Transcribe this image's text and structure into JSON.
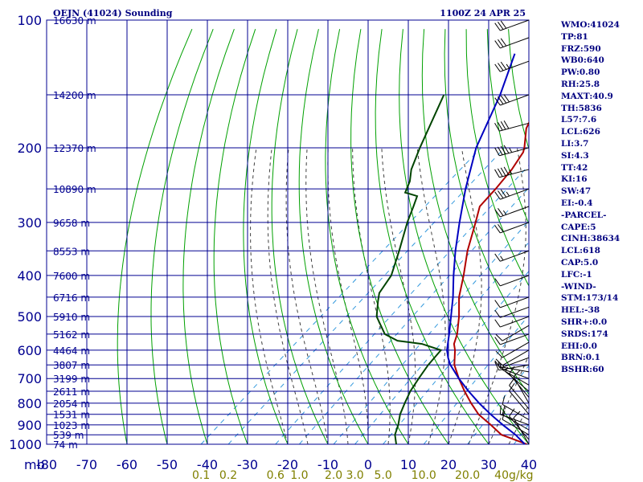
{
  "header": {
    "station": "OEJN (41024) Sounding",
    "valid_time": "1100Z 24 APR 25"
  },
  "colors": {
    "grid": "#000090",
    "dry_adiabat": "#00a000",
    "moist_adiabat": "#404040",
    "mixing_ratio": "#3399dd",
    "temperature": "#b00000",
    "dewpoint": "#004400",
    "parcel": "#0000c0",
    "wind_barb": "#000000",
    "text": "#000080",
    "mix_label": "#808000"
  },
  "indices": [
    "WMO:41024",
    "TP:81",
    "FRZ:590",
    "WB0:640",
    "PW:0.80",
    "RH:25.8",
    "MAXT:40.9",
    "TH:5836",
    "L57:7.6",
    "LCL:626",
    "LI:3.7",
    "SI:4.3",
    "TT:42",
    "KI:16",
    "SW:47",
    "EI:-0.4",
    "-PARCEL-",
    "CAPE:5",
    "CINH:38634",
    "LCL:618",
    "CAP:5.0",
    "LFC:-1",
    "-WIND-",
    "STM:173/14",
    "HEL:-38",
    "SHR+:0.0",
    "SRDS:174",
    "EHI:0.0",
    "BRN:0.1",
    "BSHR:60"
  ],
  "chart_data": {
    "type": "skew-t log-p",
    "title": "OEJN (41024) Sounding",
    "xlabel": "",
    "ylabel": "mb",
    "p_range": [
      1000,
      100
    ],
    "t_range": [
      -80,
      40
    ],
    "pressure_ticks": [
      {
        "p": 100,
        "label": "100"
      },
      {
        "p": 200,
        "label": "200"
      },
      {
        "p": 300,
        "label": "300"
      },
      {
        "p": 400,
        "label": "400"
      },
      {
        "p": 500,
        "label": "500"
      },
      {
        "p": 600,
        "label": "600"
      },
      {
        "p": 700,
        "label": "700"
      },
      {
        "p": 800,
        "label": "800"
      },
      {
        "p": 900,
        "label": "900"
      },
      {
        "p": 1000,
        "label": "1000"
      }
    ],
    "x_axis_unit": "mb",
    "temperature_ticks": [
      "-80",
      "-70",
      "-60",
      "-50",
      "-40",
      "-30",
      "-20",
      "-10",
      "0",
      "10",
      "20",
      "30",
      "40"
    ],
    "mixing_ratio_labels": [
      "0.1",
      "0.2",
      "0.6",
      "1.0",
      "2.0",
      "3.0",
      "5.0",
      "10.0",
      "20.0",
      "40g/kg"
    ],
    "mixing_ratio_values": [
      0.1,
      0.2,
      0.6,
      1.0,
      2.0,
      3.0,
      5.0,
      10.0,
      20.0,
      40.0
    ],
    "height_labels": [
      {
        "p": 100,
        "label": "16630 m"
      },
      {
        "p": 150,
        "label": "14200 m"
      },
      {
        "p": 200,
        "label": "12370 m"
      },
      {
        "p": 250,
        "label": "10890 m"
      },
      {
        "p": 300,
        "label": "9658 m"
      },
      {
        "p": 350,
        "label": "8553 m"
      },
      {
        "p": 400,
        "label": "7600 m"
      },
      {
        "p": 450,
        "label": "6716 m"
      },
      {
        "p": 500,
        "label": "5910 m"
      },
      {
        "p": 550,
        "label": "5162 m"
      },
      {
        "p": 600,
        "label": "4464 m"
      },
      {
        "p": 650,
        "label": "3807 m"
      },
      {
        "p": 700,
        "label": "3199 m"
      },
      {
        "p": 750,
        "label": "2611 m"
      },
      {
        "p": 800,
        "label": "2054 m"
      },
      {
        "p": 850,
        "label": "1531 m"
      },
      {
        "p": 900,
        "label": "1023 m"
      },
      {
        "p": 950,
        "label": "539 m"
      },
      {
        "p": 1000,
        "label": "74 m"
      }
    ],
    "series": [
      {
        "name": "Temperature",
        "values": [
          {
            "p": 1000,
            "t": 39.5
          },
          {
            "p": 950,
            "t": 30.5
          },
          {
            "p": 900,
            "t": 25
          },
          {
            "p": 850,
            "t": 19
          },
          {
            "p": 800,
            "t": 14
          },
          {
            "p": 750,
            "t": 9
          },
          {
            "p": 700,
            "t": 4
          },
          {
            "p": 650,
            "t": -1
          },
          {
            "p": 600,
            "t": -5
          },
          {
            "p": 580,
            "t": -7
          },
          {
            "p": 550,
            "t": -9
          },
          {
            "p": 500,
            "t": -13.5
          },
          {
            "p": 450,
            "t": -19
          },
          {
            "p": 400,
            "t": -24
          },
          {
            "p": 350,
            "t": -30
          },
          {
            "p": 300,
            "t": -36
          },
          {
            "p": 275,
            "t": -39.5
          },
          {
            "p": 250,
            "t": -40.5
          },
          {
            "p": 225,
            "t": -42
          },
          {
            "p": 205,
            "t": -44
          },
          {
            "p": 200,
            "t": -45
          },
          {
            "p": 180,
            "t": -50
          },
          {
            "p": 150,
            "t": -55.5
          },
          {
            "p": 125,
            "t": -60
          },
          {
            "p": 100,
            "t": -65.5
          }
        ]
      },
      {
        "name": "Dewpoint",
        "values": [
          {
            "p": 1000,
            "t": 7
          },
          {
            "p": 950,
            "t": 4
          },
          {
            "p": 900,
            "t": 2
          },
          {
            "p": 850,
            "t": -0.5
          },
          {
            "p": 800,
            "t": -2.5
          },
          {
            "p": 750,
            "t": -4.5
          },
          {
            "p": 700,
            "t": -6
          },
          {
            "p": 650,
            "t": -7.5
          },
          {
            "p": 600,
            "t": -8.5
          },
          {
            "p": 580,
            "t": -15
          },
          {
            "p": 570,
            "t": -22
          },
          {
            "p": 550,
            "t": -27
          },
          {
            "p": 500,
            "t": -34
          },
          {
            "p": 460,
            "t": -38
          },
          {
            "p": 440,
            "t": -40
          },
          {
            "p": 400,
            "t": -42
          },
          {
            "p": 350,
            "t": -47
          },
          {
            "p": 300,
            "t": -53
          },
          {
            "p": 275,
            "t": -56
          },
          {
            "p": 260,
            "t": -58
          },
          {
            "p": 255,
            "t": -62
          },
          {
            "p": 240,
            "t": -64
          },
          {
            "p": 225,
            "t": -67
          },
          {
            "p": 200,
            "t": -71
          },
          {
            "p": 150,
            "t": -80
          }
        ]
      },
      {
        "name": "Parcel",
        "values": [
          {
            "p": 1000,
            "t": 39
          },
          {
            "p": 950,
            "t": 34
          },
          {
            "p": 900,
            "t": 28
          },
          {
            "p": 850,
            "t": 22
          },
          {
            "p": 800,
            "t": 16
          },
          {
            "p": 750,
            "t": 10
          },
          {
            "p": 700,
            "t": 4
          },
          {
            "p": 650,
            "t": -2
          },
          {
            "p": 626,
            "t": -4.5
          },
          {
            "p": 600,
            "t": -7
          },
          {
            "p": 550,
            "t": -11
          },
          {
            "p": 500,
            "t": -15.5
          },
          {
            "p": 450,
            "t": -20.5
          },
          {
            "p": 400,
            "t": -26.5
          },
          {
            "p": 350,
            "t": -33
          },
          {
            "p": 300,
            "t": -40
          },
          {
            "p": 250,
            "t": -48
          },
          {
            "p": 200,
            "t": -57
          },
          {
            "p": 150,
            "t": -66
          },
          {
            "p": 120,
            "t": -74
          }
        ]
      }
    ],
    "wind_barbs": [
      {
        "p": 1000,
        "dir": 330,
        "spd": 10
      },
      {
        "p": 975,
        "dir": 320,
        "spd": 10
      },
      {
        "p": 950,
        "dir": 300,
        "spd": 10
      },
      {
        "p": 925,
        "dir": 300,
        "spd": 10
      },
      {
        "p": 900,
        "dir": 290,
        "spd": 10
      },
      {
        "p": 875,
        "dir": 300,
        "spd": 10
      },
      {
        "p": 850,
        "dir": 320,
        "spd": 10
      },
      {
        "p": 825,
        "dir": 320,
        "spd": 10
      },
      {
        "p": 800,
        "dir": 330,
        "spd": 10
      },
      {
        "p": 775,
        "dir": 320,
        "spd": 10
      },
      {
        "p": 750,
        "dir": 310,
        "spd": 5
      },
      {
        "p": 725,
        "dir": 300,
        "spd": 5
      },
      {
        "p": 700,
        "dir": 290,
        "spd": 5
      },
      {
        "p": 675,
        "dir": 280,
        "spd": 5
      },
      {
        "p": 650,
        "dir": 260,
        "spd": 10
      },
      {
        "p": 625,
        "dir": 250,
        "spd": 10
      },
      {
        "p": 600,
        "dir": 240,
        "spd": 10
      },
      {
        "p": 575,
        "dir": 240,
        "spd": 10
      },
      {
        "p": 550,
        "dir": 250,
        "spd": 10
      },
      {
        "p": 525,
        "dir": 240,
        "spd": 10
      },
      {
        "p": 500,
        "dir": 250,
        "spd": 10
      },
      {
        "p": 475,
        "dir": 250,
        "spd": 10
      },
      {
        "p": 450,
        "dir": 250,
        "spd": 10
      },
      {
        "p": 400,
        "dir": 250,
        "spd": 10
      },
      {
        "p": 350,
        "dir": 250,
        "spd": 15
      },
      {
        "p": 300,
        "dir": 250,
        "spd": 20
      },
      {
        "p": 275,
        "dir": 250,
        "spd": 25
      },
      {
        "p": 250,
        "dir": 250,
        "spd": 35
      },
      {
        "p": 225,
        "dir": 255,
        "spd": 45
      },
      {
        "p": 200,
        "dir": 255,
        "spd": 45
      },
      {
        "p": 175,
        "dir": 255,
        "spd": 40
      },
      {
        "p": 150,
        "dir": 250,
        "spd": 40
      },
      {
        "p": 125,
        "dir": 250,
        "spd": 35
      },
      {
        "p": 110,
        "dir": 250,
        "spd": 30
      },
      {
        "p": 100,
        "dir": 250,
        "spd": 30
      }
    ]
  }
}
